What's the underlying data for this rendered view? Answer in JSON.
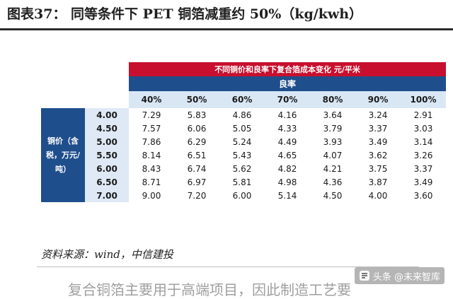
{
  "figure_title": "图表37：   同等条件下 PET 铜箔减重约 50%（kg/kwh）",
  "table": {
    "top_header": "不同铜价和良率下复合箔成本变化 元/平米",
    "sub_header": "良率",
    "row_group_label": "铜价（含税，万元/吨）",
    "yield_columns": [
      "40%",
      "50%",
      "60%",
      "70%",
      "80%",
      "90%",
      "100%"
    ],
    "rows": [
      {
        "price": "4.00",
        "values": [
          "7.29",
          "5.83",
          "4.86",
          "4.16",
          "3.64",
          "3.24",
          "2.91"
        ]
      },
      {
        "price": "4.50",
        "values": [
          "7.57",
          "6.06",
          "5.05",
          "4.33",
          "3.79",
          "3.37",
          "3.03"
        ]
      },
      {
        "price": "5.00",
        "values": [
          "7.86",
          "6.29",
          "5.24",
          "4.49",
          "3.93",
          "3.49",
          "3.14"
        ]
      },
      {
        "price": "5.50",
        "values": [
          "8.14",
          "6.51",
          "5.43",
          "4.65",
          "4.07",
          "3.62",
          "3.26"
        ]
      },
      {
        "price": "6.00",
        "values": [
          "8.43",
          "6.74",
          "5.62",
          "4.82",
          "4.21",
          "3.75",
          "3.37"
        ]
      },
      {
        "price": "6.50",
        "values": [
          "8.71",
          "6.97",
          "5.81",
          "4.98",
          "4.36",
          "3.87",
          "3.49"
        ]
      },
      {
        "price": "7.00",
        "values": [
          "9.00",
          "7.20",
          "6.00",
          "5.14",
          "4.50",
          "4.00",
          "3.60"
        ]
      }
    ]
  },
  "source_note": "资料来源：wind，中信建投",
  "bottom_text": "复合铜箔主要用于高端项目，因此制造工艺要",
  "watermark": {
    "text": "头条 @未来智库",
    "icon": "toutiao-logo-icon"
  },
  "colors": {
    "header_red": "#c8102e",
    "header_blue": "#1f4e8c",
    "label_bg": "#dfe9f5"
  }
}
